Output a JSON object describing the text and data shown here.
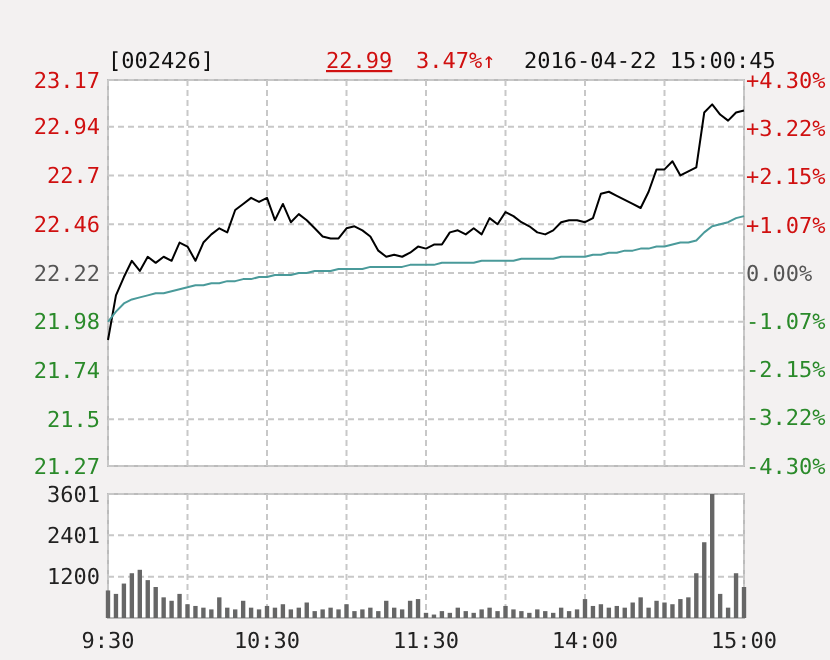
{
  "chart_data": [
    {
      "type": "line",
      "title": "[002426]",
      "annotations": [
        "22.99",
        "3.47%↑",
        "2016-04-22 15:00:45"
      ],
      "categories": [
        null,
        null,
        null,
        null,
        null,
        null,
        null,
        null,
        null,
        null,
        null,
        null,
        null,
        null,
        null,
        null,
        null,
        null,
        null,
        null,
        null,
        null,
        null,
        null,
        null,
        null,
        null,
        null,
        null,
        null,
        null,
        null,
        null,
        null,
        null,
        null,
        null,
        null,
        null,
        null,
        null,
        null,
        null,
        null,
        null,
        null,
        null,
        null,
        null,
        null,
        null,
        null,
        null,
        null,
        null,
        null,
        null,
        null,
        null,
        null,
        null,
        null,
        null,
        null,
        null,
        null,
        null,
        null,
        null,
        null,
        null,
        null,
        null,
        null,
        null,
        null,
        null,
        null,
        null,
        null,
        null
      ],
      "ylim": [
        21.27,
        23.17
      ],
      "yticks": [
        21.27,
        21.5,
        21.74,
        21.98,
        22.22,
        22.46,
        22.7,
        22.94,
        23.17
      ],
      "y2lim": [
        -4.3,
        4.3
      ],
      "y2ticks": [
        {
          "value": -4.3,
          "label": "-4.30%"
        },
        {
          "value": -3.22,
          "label": "-3.22%"
        },
        {
          "value": -2.15,
          "label": "-2.15%"
        },
        {
          "value": -1.07,
          "label": "-1.07%"
        },
        {
          "value": 0,
          "label": "0.00%"
        },
        {
          "value": 1.07,
          "label": "+1.07%"
        },
        {
          "value": 2.15,
          "label": "+2.15%"
        },
        {
          "value": 3.22,
          "label": "+3.22%"
        },
        {
          "value": 4.3,
          "label": "+4.30%"
        }
      ],
      "grid": true,
      "tick_labels": "y",
      "marker": "none",
      "line_style": "solid",
      "series": [
        {
          "color": "#000000",
          "values": [
            21.89,
            22.11,
            22.2,
            22.28,
            22.23,
            22.3,
            22.27,
            22.3,
            22.28,
            22.37,
            22.35,
            22.28,
            22.37,
            22.41,
            22.44,
            22.42,
            22.53,
            22.56,
            22.59,
            22.57,
            22.59,
            22.48,
            22.56,
            22.47,
            22.51,
            22.48,
            22.44,
            22.4,
            22.39,
            22.39,
            22.44,
            22.45,
            22.43,
            22.4,
            22.33,
            22.3,
            22.31,
            22.3,
            22.32,
            22.35,
            22.34,
            22.36,
            22.36,
            22.42,
            22.43,
            22.41,
            22.44,
            22.41,
            22.49,
            22.46,
            22.52,
            22.5,
            22.47,
            22.45,
            22.42,
            22.41,
            22.43,
            22.47,
            22.48,
            22.48,
            22.47,
            22.49,
            22.61,
            22.62,
            22.6,
            22.58,
            22.56,
            22.54,
            22.62,
            22.73,
            22.73,
            22.77,
            22.7,
            22.72,
            22.74,
            23.01,
            23.05,
            23.0,
            22.97,
            23.01,
            23.02
          ]
        },
        {
          "color": "#4a9a9a",
          "values": [
            21.98,
            22.03,
            22.07,
            22.09,
            22.1,
            22.11,
            22.12,
            22.12,
            22.13,
            22.14,
            22.15,
            22.16,
            22.16,
            22.17,
            22.17,
            22.18,
            22.18,
            22.19,
            22.19,
            22.2,
            22.2,
            22.21,
            22.21,
            22.21,
            22.22,
            22.22,
            22.23,
            22.23,
            22.23,
            22.24,
            22.24,
            22.24,
            22.24,
            22.25,
            22.25,
            22.25,
            22.25,
            22.25,
            22.26,
            22.26,
            22.26,
            22.26,
            22.27,
            22.27,
            22.27,
            22.27,
            22.27,
            22.28,
            22.28,
            22.28,
            22.28,
            22.28,
            22.29,
            22.29,
            22.29,
            22.29,
            22.29,
            22.3,
            22.3,
            22.3,
            22.3,
            22.31,
            22.31,
            22.32,
            22.32,
            22.33,
            22.33,
            22.34,
            22.34,
            22.35,
            22.35,
            22.36,
            22.37,
            22.37,
            22.38,
            22.42,
            22.45,
            22.46,
            22.47,
            22.49,
            22.5
          ]
        }
      ]
    },
    {
      "type": "bar",
      "categories": [
        "9:30",
        null,
        null,
        null,
        null,
        null,
        null,
        null,
        null,
        null,
        null,
        null,
        null,
        null,
        null,
        null,
        null,
        null,
        null,
        null,
        "10:30",
        null,
        null,
        null,
        null,
        null,
        null,
        null,
        null,
        null,
        null,
        null,
        null,
        null,
        null,
        null,
        null,
        null,
        null,
        null,
        "11:30",
        null,
        null,
        null,
        null,
        null,
        null,
        null,
        null,
        null,
        null,
        null,
        null,
        null,
        null,
        null,
        null,
        null,
        null,
        null,
        "14:00",
        null,
        null,
        null,
        null,
        null,
        null,
        null,
        null,
        null,
        null,
        null,
        null,
        null,
        null,
        null,
        null,
        null,
        null,
        null,
        "15:00"
      ],
      "ylim": [
        0,
        3601
      ],
      "yticks": [
        1200,
        2401,
        3601
      ],
      "grid": true,
      "series": [
        {
          "color": "#666666",
          "values": [
            800,
            700,
            1000,
            1300,
            1400,
            1100,
            900,
            600,
            500,
            700,
            400,
            350,
            300,
            250,
            600,
            300,
            250,
            500,
            300,
            250,
            350,
            300,
            400,
            250,
            300,
            450,
            200,
            250,
            300,
            250,
            400,
            200,
            250,
            300,
            200,
            500,
            300,
            250,
            500,
            550,
            150,
            100,
            200,
            150,
            300,
            200,
            150,
            250,
            300,
            200,
            350,
            250,
            200,
            150,
            250,
            200,
            150,
            300,
            200,
            250,
            550,
            350,
            400,
            300,
            350,
            300,
            450,
            600,
            300,
            500,
            450,
            400,
            550,
            600,
            1300,
            2200,
            3601,
            700,
            300,
            1300,
            900
          ]
        }
      ]
    }
  ]
}
